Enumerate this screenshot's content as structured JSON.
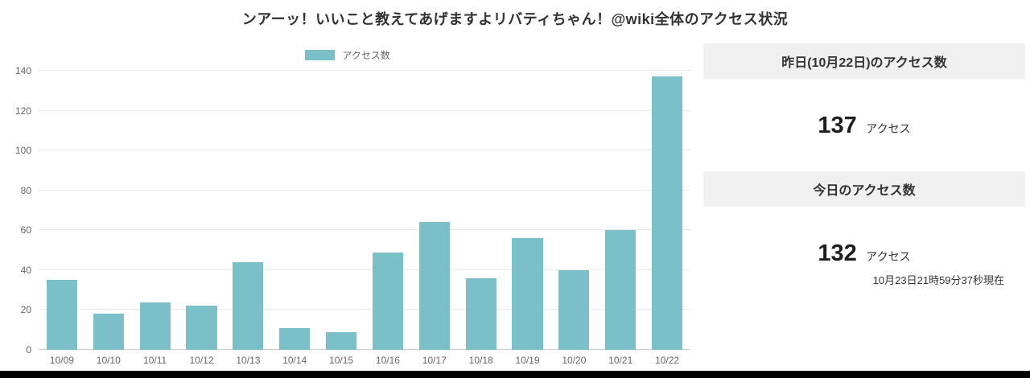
{
  "page": {
    "title": "ンアーッ！いいこと教えてあげますよリバティちゃん！@wiki全体のアクセス状況"
  },
  "chart_data": {
    "type": "bar",
    "legend": "アクセス数",
    "legend_position": "top",
    "categories": [
      "10/09",
      "10/10",
      "10/11",
      "10/12",
      "10/13",
      "10/14",
      "10/15",
      "10/16",
      "10/17",
      "10/18",
      "10/19",
      "10/20",
      "10/21",
      "10/22"
    ],
    "values": [
      35,
      18,
      24,
      22,
      44,
      11,
      9,
      49,
      64,
      36,
      56,
      40,
      60,
      137
    ],
    "ylim": [
      0,
      140
    ],
    "ytick_step": 20,
    "bar_color": "#7bbfc8",
    "grid": true
  },
  "stats": {
    "yesterday": {
      "header": "昨日(10月22日)のアクセス数",
      "value": "137",
      "unit": "アクセス"
    },
    "today": {
      "header": "今日のアクセス数",
      "value": "132",
      "unit": "アクセス",
      "timestamp": "10月23日21時59分37秒現在"
    }
  }
}
